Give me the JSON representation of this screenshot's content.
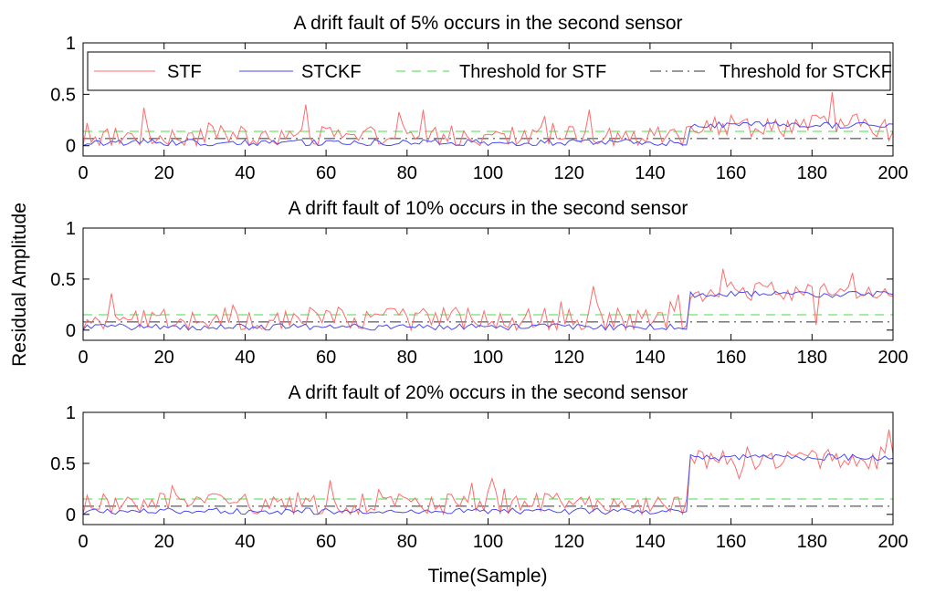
{
  "chart_data": {
    "type": "line",
    "ylabel": "Residual Amplitude",
    "xlabel": "Time(Sample)",
    "legend": {
      "placement": "top",
      "entries": [
        "STF",
        "STCKF",
        "Threshold for STF",
        "Threshold for STCKF"
      ]
    },
    "colors": {
      "STF": "#ff6b6b",
      "STCKF": "#4b4bf0",
      "Threshold for STF": "#44dd44",
      "Threshold for STCKF": "#333333"
    },
    "xlim": [
      0,
      200
    ],
    "ylim": [
      -0.1,
      1
    ],
    "xticks": [
      "0",
      "20",
      "40",
      "60",
      "80",
      "100",
      "120",
      "140",
      "160",
      "180",
      "200"
    ],
    "yticks": [
      "0",
      "0.5",
      "1"
    ],
    "panels": [
      {
        "title": "A drift fault of 5% occurs in the second sensor",
        "fault_start": 150,
        "stf_threshold": 0.14,
        "stckf_threshold": 0.07,
        "stf_levels": {
          "before_mean": 0.09,
          "before_amp": 0.12,
          "after_mean": 0.2,
          "after_amp": 0.14
        },
        "stckf_levels": {
          "before_mean": 0.03,
          "before_amp": 0.04,
          "after_mean": 0.2,
          "after_amp": 0.04
        },
        "stf_peaks": [
          [
            1,
            0.22
          ],
          [
            15,
            0.37
          ],
          [
            55,
            0.4
          ],
          [
            84,
            0.35
          ],
          [
            125,
            0.35
          ],
          [
            185,
            0.52
          ],
          [
            199,
            0.05
          ]
        ]
      },
      {
        "title": "A drift fault of 10% occurs in the second sensor",
        "fault_start": 150,
        "stf_threshold": 0.15,
        "stckf_threshold": 0.08,
        "stf_levels": {
          "before_mean": 0.1,
          "before_amp": 0.14,
          "after_mean": 0.38,
          "after_amp": 0.14
        },
        "stckf_levels": {
          "before_mean": 0.03,
          "before_amp": 0.04,
          "after_mean": 0.35,
          "after_amp": 0.04
        },
        "stf_peaks": [
          [
            7,
            0.36
          ],
          [
            126,
            0.43
          ],
          [
            158,
            0.6
          ],
          [
            181,
            0.05
          ],
          [
            190,
            0.56
          ]
        ]
      },
      {
        "title": "A drift fault of 20% occurs in the second sensor",
        "fault_start": 150,
        "stf_threshold": 0.15,
        "stckf_threshold": 0.08,
        "stf_levels": {
          "before_mean": 0.1,
          "before_amp": 0.12,
          "after_mean": 0.55,
          "after_amp": 0.14
        },
        "stckf_levels": {
          "before_mean": 0.03,
          "before_amp": 0.04,
          "after_mean": 0.56,
          "after_amp": 0.04
        },
        "stf_peaks": [
          [
            101,
            0.35
          ],
          [
            155,
            0.6
          ],
          [
            162,
            0.35
          ],
          [
            199,
            0.83
          ]
        ]
      }
    ]
  }
}
